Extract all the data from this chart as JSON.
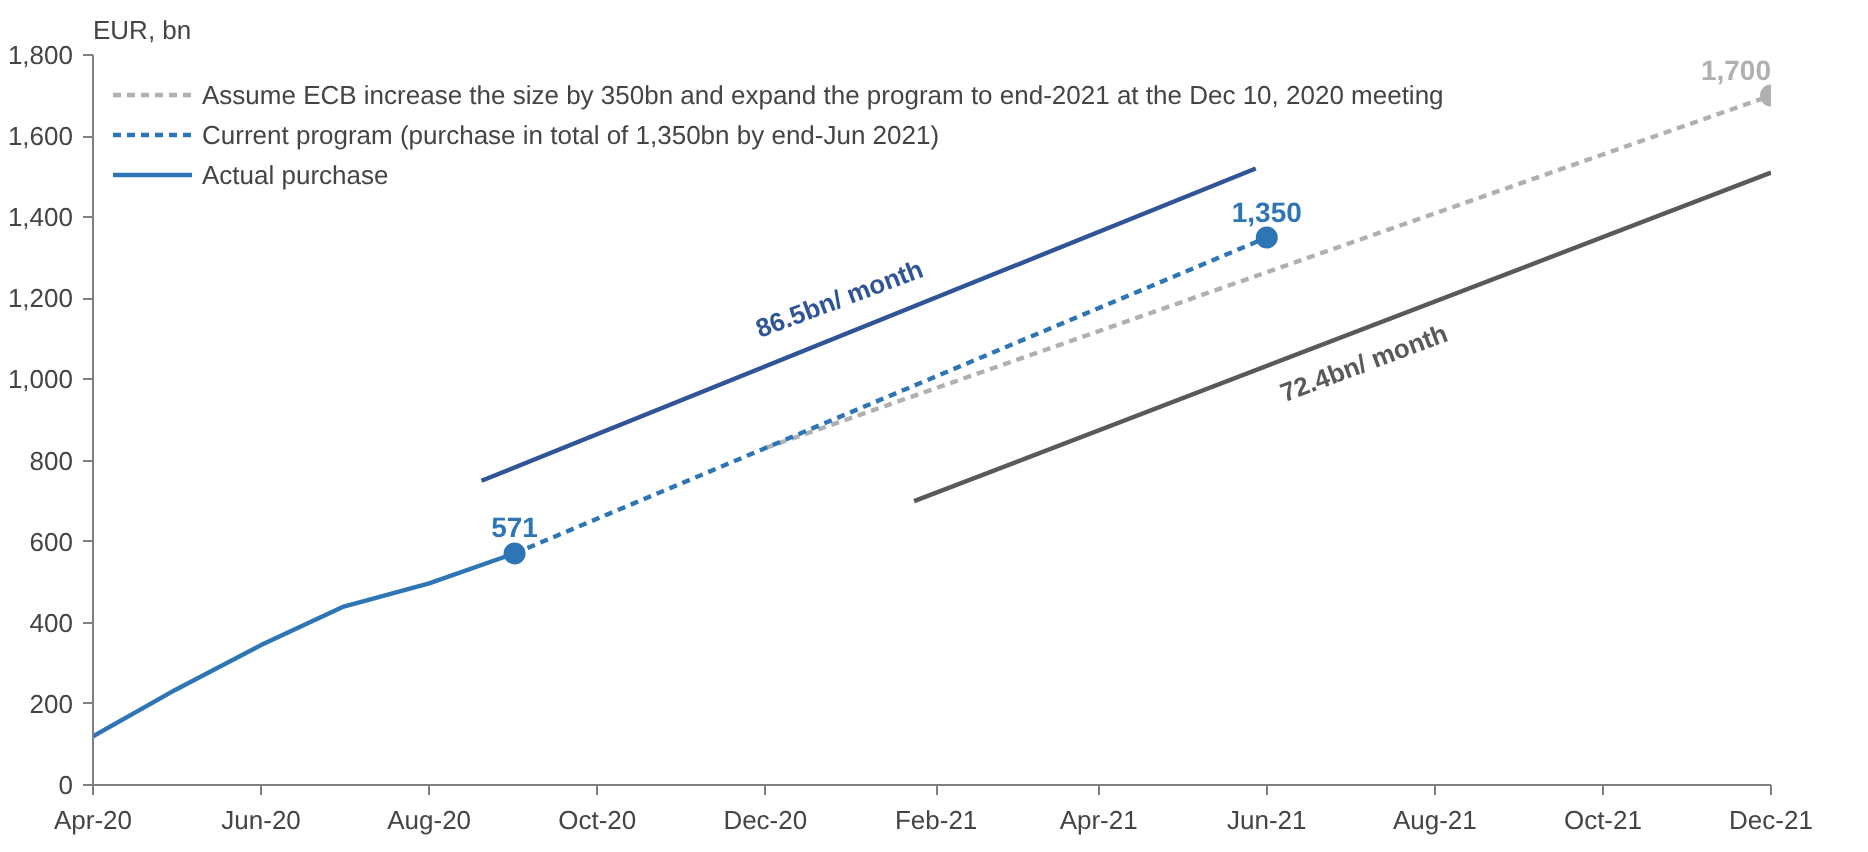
{
  "chart_data": {
    "type": "line",
    "ylabel": "EUR, bn",
    "xlim": [
      "2020-04",
      "2021-12"
    ],
    "xticks": [
      {
        "value": "2020-04",
        "label": "Apr-20"
      },
      {
        "value": "2020-06",
        "label": "Jun-20"
      },
      {
        "value": "2020-08",
        "label": "Aug-20"
      },
      {
        "value": "2020-10",
        "label": "Oct-20"
      },
      {
        "value": "2020-12",
        "label": "Dec-20"
      },
      {
        "value": "2021-02",
        "label": "Feb-21"
      },
      {
        "value": "2021-04",
        "label": "Apr-21"
      },
      {
        "value": "2021-06",
        "label": "Jun-21"
      },
      {
        "value": "2021-08",
        "label": "Aug-21"
      },
      {
        "value": "2021-10",
        "label": "Oct-21"
      },
      {
        "value": "2021-12",
        "label": "Dec-21"
      }
    ],
    "ylim": [
      0,
      1800
    ],
    "yticks": [
      {
        "value": 0,
        "label": "0"
      },
      {
        "value": 200,
        "label": "200"
      },
      {
        "value": 400,
        "label": "400"
      },
      {
        "value": 600,
        "label": "600"
      },
      {
        "value": 800,
        "label": "800"
      },
      {
        "value": 1000,
        "label": "1,000"
      },
      {
        "value": 1200,
        "label": "1,200"
      },
      {
        "value": 1400,
        "label": "1,400"
      },
      {
        "value": 1600,
        "label": "1,600"
      },
      {
        "value": 1800,
        "label": "1,800"
      }
    ],
    "grid": false,
    "legend": "top left",
    "series": [
      {
        "name": "Assume ECB increase the size by 350bn and expand the program to end-2021 at the Dec 10, 2020 meeting",
        "color": "#b0b0b0",
        "line_style": "dashed",
        "x": [
          "2020-12",
          "2021-12"
        ],
        "values": [
          831,
          1700
        ]
      },
      {
        "name": "Current program (purchase in total of 1,350bn by end-Jun 2021)",
        "color": "#2e75b6",
        "line_style": "dashed",
        "x": [
          "2020-09",
          "2021-06"
        ],
        "values": [
          571,
          1350
        ]
      },
      {
        "name": "Actual purchase",
        "color": "#2e75b6",
        "line_style": "solid",
        "x": [
          "2020-04",
          "2020-05",
          "2020-06",
          "2020-07",
          "2020-08",
          "2020-09"
        ],
        "values": [
          120,
          235,
          345,
          440,
          497,
          571
        ]
      },
      {
        "color": "#2f5597",
        "line_style": "solid",
        "x": [
          "2020-08-20",
          "2021-05-28"
        ],
        "values": [
          750,
          1520
        ]
      },
      {
        "color": "#595959",
        "line_style": "solid",
        "x": [
          "2021-01-24",
          "2021-12"
        ],
        "values": [
          700,
          1510
        ]
      },
      {
        "type": "scatter",
        "color": "#2e75b6",
        "marker": "circle",
        "x": [
          "2020-09"
        ],
        "values": [
          571
        ],
        "value_labels": [
          "571"
        ]
      },
      {
        "type": "scatter",
        "color": "#2e75b6",
        "marker": "circle",
        "x": [
          "2021-06"
        ],
        "values": [
          1350
        ],
        "value_labels": [
          "1,350"
        ]
      },
      {
        "type": "scatter",
        "color": "#b0b0b0",
        "marker": "circle",
        "x": [
          "2021-12"
        ],
        "values": [
          1700
        ],
        "value_labels": [
          "1,700"
        ]
      }
    ],
    "annotations": [
      "86.5bn/ month",
      "72.4bn/ month"
    ]
  }
}
